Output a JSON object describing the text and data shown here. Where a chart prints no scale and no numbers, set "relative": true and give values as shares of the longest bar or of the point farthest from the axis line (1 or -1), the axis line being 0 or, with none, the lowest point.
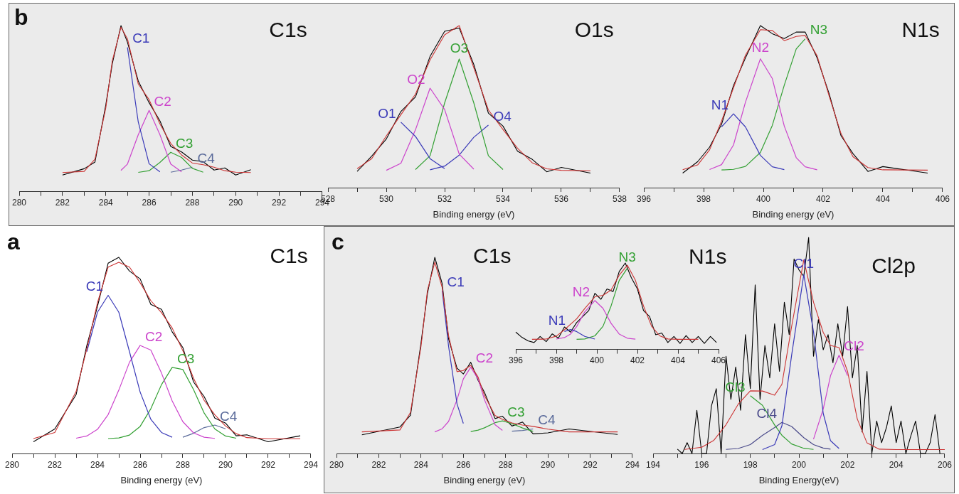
{
  "chart_data": [
    {
      "type": "line",
      "title": "C1s",
      "annotations": [
        "b"
      ],
      "relative": true,
      "marker": "none",
      "line_style": "solid",
      "grid": false,
      "legend": false,
      "x": [
        282,
        283,
        283.5,
        284,
        284.3,
        284.7,
        285,
        285.5,
        286,
        286.5,
        287,
        287.5,
        288,
        288.5,
        289,
        289.5,
        290,
        290.7
      ],
      "xlim": [
        280,
        294
      ],
      "xticks": [
        280,
        {
          "value": 281,
          "label": null
        },
        282,
        {
          "value": 283,
          "label": null
        },
        284,
        {
          "value": 285,
          "label": null
        },
        286,
        {
          "value": 287,
          "label": null
        },
        288,
        {
          "value": 289,
          "label": null
        },
        290,
        {
          "value": 291,
          "label": null
        },
        292,
        {
          "value": 293,
          "label": null
        },
        294
      ],
      "series": [
        {
          "color": "#cc3333",
          "values": [
            0.115,
            0.122,
            0.196,
            0.504,
            0.788,
            0.99,
            0.92,
            0.648,
            0.554,
            0.408,
            0.29,
            0.221,
            0.172,
            0.162,
            0.147,
            0.126,
            0.117,
            0.115
          ]
        },
        {
          "name": "C1",
          "color": "#3a3ab8",
          "values": [
            null,
            null,
            null,
            null,
            null,
            null,
            0.869,
            0.419,
            0.168,
            0.119,
            null,
            null,
            null,
            null,
            null,
            null,
            null,
            null
          ]
        },
        {
          "name": "C2",
          "color": "#cc44cc",
          "values": [
            null,
            null,
            null,
            null,
            null,
            0.128,
            0.166,
            0.343,
            0.49,
            0.343,
            0.166,
            0.119,
            null,
            null,
            null,
            null,
            null,
            null
          ]
        },
        {
          "name": "C3",
          "color": "#33a033",
          "values": [
            null,
            null,
            null,
            null,
            null,
            null,
            null,
            0.116,
            0.126,
            0.176,
            0.237,
            0.206,
            0.14,
            0.117,
            null,
            null,
            null,
            null
          ]
        },
        {
          "name": "C4",
          "color": "#5a6a9a",
          "values": [
            null,
            null,
            null,
            null,
            null,
            null,
            null,
            null,
            null,
            null,
            0.117,
            0.13,
            0.147,
            null,
            null,
            null,
            null,
            null
          ]
        },
        {
          "color": "#000000",
          "values": [
            0.1,
            0.138,
            0.178,
            0.522,
            0.77,
            1.0,
            0.9,
            0.666,
            0.536,
            0.426,
            0.272,
            0.239,
            0.19,
            0.18,
            0.13,
            0.143,
            0.1,
            0.132
          ]
        }
      ]
    },
    {
      "type": "line",
      "title": "O1s",
      "xlabel": "Binding energy (eV)",
      "relative": true,
      "marker": "none",
      "line_style": "solid",
      "grid": false,
      "legend": false,
      "x": [
        529,
        529.5,
        530,
        530.5,
        531,
        531.5,
        532,
        532.5,
        533,
        533.5,
        534,
        534.5,
        535,
        535.5,
        536,
        537
      ],
      "xlim": [
        528,
        538
      ],
      "xticks": [
        528,
        {
          "value": 529,
          "label": null
        },
        530,
        {
          "value": 531,
          "label": null
        },
        532,
        {
          "value": 533,
          "label": null
        },
        534,
        {
          "value": 535,
          "label": null
        },
        536,
        {
          "value": 537,
          "label": null
        },
        538
      ],
      "series": [
        {
          "color": "#cc3333",
          "values": [
            0.117,
            0.179,
            0.319,
            0.45,
            0.577,
            0.788,
            0.943,
            1.0,
            0.74,
            0.479,
            0.359,
            0.243,
            0.154,
            0.116,
            0.107,
            0.104
          ]
        },
        {
          "name": "O1",
          "color": "#3a3ab8",
          "values": [
            null,
            null,
            null,
            0.404,
            0.316,
            0.179,
            0.117,
            null,
            null,
            null,
            null,
            null,
            null,
            null,
            null,
            null
          ]
        },
        {
          "name": "O2",
          "color": "#cc44cc",
          "values": [
            null,
            null,
            0.107,
            0.15,
            0.357,
            0.614,
            0.482,
            0.207,
            0.114,
            null,
            null,
            null,
            null,
            null,
            null,
            null
          ]
        },
        {
          "name": "O3",
          "color": "#33a033",
          "values": [
            null,
            null,
            null,
            null,
            0.112,
            0.197,
            0.523,
            0.794,
            0.523,
            0.197,
            0.112,
            null,
            null,
            null,
            null,
            null
          ]
        },
        {
          "name": "O4",
          "color": "#3a3ab8",
          "values": [
            null,
            null,
            null,
            null,
            null,
            0.11,
            0.133,
            0.201,
            0.311,
            0.386,
            null,
            null,
            null,
            null,
            null,
            null
          ]
        },
        {
          "color": "#000000",
          "values": [
            0.1,
            0.195,
            0.3,
            0.47,
            0.56,
            0.81,
            0.965,
            0.985,
            0.76,
            0.46,
            0.38,
            0.225,
            0.175,
            0.098,
            0.125,
            0.09
          ]
        }
      ]
    },
    {
      "type": "line",
      "title": "N1s",
      "xlabel": "Binding energy (eV)",
      "relative": true,
      "marker": "none",
      "line_style": "solid",
      "grid": false,
      "legend": false,
      "x": [
        397.3,
        397.8,
        398.2,
        398.6,
        399,
        399.4,
        399.9,
        400.3,
        400.7,
        401.1,
        401.4,
        401.8,
        402.2,
        402.6,
        403,
        403.5,
        404,
        405.5
      ],
      "xlim": [
        396,
        406
      ],
      "xticks": [
        396,
        {
          "value": 397,
          "label": null
        },
        398,
        {
          "value": 399,
          "label": null
        },
        400,
        {
          "value": 401,
          "label": null
        },
        402,
        {
          "value": 403,
          "label": null
        },
        404,
        {
          "value": 405,
          "label": null
        },
        406
      ],
      "series": [
        {
          "color": "#cc3333",
          "values": [
            0.111,
            0.14,
            0.233,
            0.41,
            0.616,
            0.817,
            0.975,
            0.97,
            0.907,
            0.933,
            0.939,
            0.813,
            0.567,
            0.333,
            0.191,
            0.124,
            0.11,
            0.108
          ]
        },
        {
          "name": "N1",
          "color": "#3a3ab8",
          "values": [
            null,
            null,
            null,
            0.375,
            0.456,
            0.375,
            0.199,
            0.129,
            0.111,
            null,
            null,
            null,
            null,
            null,
            null,
            null,
            null,
            null
          ]
        },
        {
          "name": "N2",
          "color": "#cc44cc",
          "values": [
            null,
            null,
            0.112,
            0.142,
            0.263,
            0.527,
            0.795,
            0.673,
            0.38,
            0.185,
            0.129,
            0.11,
            null,
            null,
            null,
            null,
            null,
            null
          ]
        },
        {
          "name": "N3",
          "color": "#33a033",
          "values": [
            null,
            null,
            null,
            0.109,
            0.113,
            0.131,
            0.217,
            0.384,
            0.632,
            0.856,
            0.918,
            null,
            null,
            null,
            null,
            null,
            null,
            null
          ]
        },
        {
          "color": "#000000",
          "values": [
            0.09,
            0.16,
            0.25,
            0.39,
            0.63,
            0.8,
            1.0,
            0.95,
            0.92,
            0.96,
            0.96,
            0.8,
            0.58,
            0.32,
            0.21,
            0.1,
            0.13,
            0.09
          ]
        }
      ]
    },
    {
      "type": "line",
      "title": "C1s",
      "xlabel": "Binding energy (eV)",
      "annotations": [
        "a"
      ],
      "relative": true,
      "marker": "none",
      "line_style": "solid",
      "grid": false,
      "legend": false,
      "x": [
        281,
        282,
        283,
        283.5,
        284,
        284.5,
        285,
        285.5,
        286,
        286.5,
        287,
        287.5,
        288,
        288.5,
        289,
        289.5,
        290,
        290.5,
        291,
        292,
        293.5
      ],
      "xlim": [
        280,
        294
      ],
      "xticks": [
        280,
        {
          "value": 281,
          "label": null
        },
        282,
        {
          "value": 283,
          "label": null
        },
        284,
        {
          "value": 285,
          "label": null
        },
        286,
        {
          "value": 287,
          "label": null
        },
        288,
        {
          "value": 289,
          "label": null
        },
        290,
        {
          "value": 291,
          "label": null
        },
        292,
        {
          "value": 293,
          "label": null
        },
        294
      ],
      "series": [
        {
          "color": "#cc3333",
          "values": [
            0.076,
            0.107,
            0.316,
            0.533,
            0.768,
            0.95,
            0.975,
            0.95,
            0.87,
            0.779,
            0.718,
            0.64,
            0.524,
            0.384,
            0.271,
            0.197,
            0.14,
            0.101,
            0.081,
            0.075,
            0.075
          ]
        },
        {
          "name": "C1",
          "color": "#3a3ab8",
          "values": [
            null,
            null,
            null,
            0.519,
            0.72,
            0.806,
            0.72,
            0.519,
            0.313,
            0.174,
            0.107,
            0.083,
            null,
            null,
            null,
            null,
            null,
            null,
            null,
            null,
            null
          ]
        },
        {
          "name": "C2",
          "color": "#cc44cc",
          "values": [
            null,
            null,
            0.078,
            0.089,
            0.123,
            0.198,
            0.323,
            0.465,
            0.551,
            0.527,
            0.41,
            0.268,
            0.162,
            0.105,
            0.083,
            0.077,
            null,
            null,
            null,
            null,
            null
          ]
        },
        {
          "name": "C3",
          "color": "#33a033",
          "values": [
            null,
            null,
            null,
            null,
            null,
            0.076,
            0.079,
            0.094,
            0.138,
            0.228,
            0.351,
            0.439,
            0.428,
            0.326,
            0.206,
            0.125,
            0.089,
            0.078,
            null,
            null,
            null
          ]
        },
        {
          "name": "C4",
          "color": "#5a6a9a",
          "values": [
            null,
            null,
            null,
            null,
            null,
            null,
            null,
            null,
            null,
            null,
            null,
            null,
            0.083,
            0.103,
            0.132,
            0.145,
            0.126,
            null,
            null,
            null,
            null
          ]
        },
        {
          "color": "#000000",
          "values": [
            0.06,
            0.125,
            0.3,
            0.55,
            0.75,
            0.97,
            1.0,
            0.93,
            0.89,
            0.76,
            0.735,
            0.62,
            0.54,
            0.365,
            0.29,
            0.18,
            0.155,
            0.09,
            0.095,
            0.06,
            0.09
          ]
        }
      ]
    },
    {
      "type": "line",
      "title": "C1s",
      "xlabel": "Binding energy (eV)",
      "annotations": [
        "c"
      ],
      "relative": true,
      "marker": "none",
      "line_style": "solid",
      "grid": false,
      "legend": false,
      "x": [
        281.2,
        283,
        283.5,
        284,
        284.3,
        284.65,
        285,
        285.3,
        285.7,
        286,
        286.35,
        286.7,
        287,
        287.5,
        287.85,
        288.3,
        288.8,
        289.3,
        290,
        291,
        293.3
      ],
      "xlim": [
        280,
        294
      ],
      "xticks": [
        280,
        {
          "value": 281,
          "label": null
        },
        282,
        {
          "value": 283,
          "label": null
        },
        284,
        {
          "value": 285,
          "label": null
        },
        286,
        {
          "value": 287,
          "label": null
        },
        288,
        {
          "value": 289,
          "label": null
        },
        290,
        {
          "value": 291,
          "label": null
        },
        292,
        {
          "value": 293,
          "label": null
        },
        294
      ],
      "series": [
        {
          "color": "#cc3333",
          "values": [
            0.11,
            0.12,
            0.209,
            0.548,
            0.83,
            0.975,
            0.846,
            0.601,
            0.417,
            0.423,
            0.449,
            0.389,
            0.295,
            0.194,
            0.174,
            0.156,
            0.145,
            0.138,
            0.124,
            0.11,
            0.11
          ]
        },
        {
          "name": "C1",
          "color": "#3a3ab8",
          "values": [
            null,
            null,
            null,
            null,
            null,
            null,
            0.83,
            0.548,
            0.253,
            0.153,
            null,
            null,
            null,
            null,
            null,
            null,
            null,
            null,
            null,
            null,
            null
          ]
        },
        {
          "name": "C2",
          "color": "#cc44cc",
          "values": [
            null,
            null,
            null,
            null,
            null,
            0.11,
            0.126,
            0.163,
            0.274,
            0.38,
            0.44,
            0.38,
            0.274,
            0.147,
            0.118,
            null,
            null,
            null,
            null,
            null,
            null
          ]
        },
        {
          "name": "C3",
          "color": "#33a033",
          "values": [
            null,
            null,
            null,
            null,
            null,
            null,
            null,
            null,
            null,
            null,
            0.112,
            0.119,
            0.131,
            0.157,
            0.166,
            0.152,
            0.13,
            0.113,
            null,
            null,
            null
          ]
        },
        {
          "name": "C4",
          "color": "#5a6a9a",
          "values": [
            null,
            null,
            null,
            null,
            null,
            null,
            null,
            null,
            null,
            null,
            null,
            null,
            null,
            null,
            null,
            0.114,
            0.117,
            0.125,
            null,
            null,
            null
          ]
        },
        {
          "color": "#000000",
          "values": [
            0.095,
            0.135,
            0.195,
            0.565,
            0.815,
            1.0,
            0.865,
            0.585,
            0.435,
            0.405,
            0.465,
            0.372,
            0.312,
            0.178,
            0.19,
            0.14,
            0.16,
            0.1,
            0.105,
            0.125,
            0.097
          ]
        }
      ]
    },
    {
      "type": "line",
      "title": "N1s",
      "relative": true,
      "marker": "none",
      "line_style": "solid",
      "grid": false,
      "legend": false,
      "x": [
        396.8,
        397.5,
        398,
        398.4,
        398.7,
        399,
        399.4,
        399.9,
        400.3,
        400.7,
        401.1,
        401.5,
        401.9,
        402.3,
        402.7,
        403.1,
        403.5,
        404,
        405
      ],
      "xlim": [
        396,
        406
      ],
      "xticks": [
        396,
        {
          "value": 397,
          "label": null
        },
        398,
        {
          "value": 399,
          "label": null
        },
        400,
        {
          "value": 401,
          "label": null
        },
        402,
        {
          "value": 403,
          "label": null
        },
        404,
        {
          "value": 405,
          "label": null
        },
        406
      ],
      "series": [
        {
          "color": "#cc3333",
          "values": [
            0.117,
            0.12,
            0.154,
            0.227,
            0.291,
            0.353,
            0.472,
            0.609,
            0.626,
            0.688,
            0.859,
            0.975,
            0.8,
            0.503,
            0.267,
            0.157,
            0.121,
            0.117,
            0.117
          ]
        },
        {
          "name": "N1",
          "color": "#3a3ab8",
          "values": [
            null,
            null,
            null,
            0.207,
            0.23,
            0.207,
            0.151,
            0.12,
            null,
            null,
            null,
            null,
            null,
            null,
            null,
            null,
            null,
            null,
            null
          ]
        },
        {
          "name": "N2",
          "color": "#cc44cc",
          "values": [
            null,
            null,
            0.12,
            0.137,
            0.178,
            0.263,
            0.434,
            0.566,
            0.476,
            0.302,
            0.178,
            0.13,
            0.119,
            null,
            null,
            null,
            null,
            null,
            null
          ]
        },
        {
          "name": "N3",
          "color": "#33a033",
          "values": [
            null,
            null,
            null,
            null,
            null,
            0.117,
            0.121,
            0.157,
            0.267,
            0.503,
            0.798,
            0.94,
            null,
            null,
            null,
            null,
            null,
            null,
            null
          ]
        },
        {
          "color": "#000000",
          "x": [
            396,
            396.3,
            396.6,
            396.9,
            397.2,
            397.5,
            397.8,
            398.1,
            398.4,
            398.7,
            399,
            399.3,
            399.6,
            399.9,
            400.2,
            400.5,
            400.8,
            401.1,
            401.4,
            401.7,
            402,
            402.3,
            402.6,
            402.9,
            403.2,
            403.5,
            403.8,
            404.1,
            404.4,
            404.7,
            405,
            405.3,
            405.6,
            405.9
          ],
          "values": [
            0.2,
            0.14,
            0.1,
            0.08,
            0.15,
            0.09,
            0.18,
            0.13,
            0.26,
            0.2,
            0.31,
            0.38,
            0.45,
            0.65,
            0.58,
            0.7,
            0.67,
            0.9,
            1.0,
            0.83,
            0.7,
            0.45,
            0.38,
            0.17,
            0.19,
            0.08,
            0.15,
            0.07,
            0.16,
            0.08,
            0.15,
            0.07,
            0.15,
            0.08
          ]
        }
      ]
    },
    {
      "type": "line",
      "title": "Cl2p",
      "xlabel": "Binding Energy(eV)",
      "relative": true,
      "marker": "none",
      "line_style": "solid",
      "grid": false,
      "legend": false,
      "x": [
        195.3,
        196,
        196.5,
        197,
        197.5,
        198,
        198.5,
        199,
        199.3,
        199.7,
        200.2,
        200.6,
        201,
        201.3,
        201.65,
        202,
        202.4,
        202.8,
        203.3,
        204,
        206
      ],
      "xlim": [
        194,
        206
      ],
      "xticks": [
        194,
        {
          "value": 195,
          "label": null
        },
        196,
        {
          "value": 197,
          "label": null
        },
        198,
        {
          "value": 199,
          "label": null
        },
        200,
        {
          "value": 201,
          "label": null
        },
        202,
        {
          "value": 203,
          "label": null
        },
        204,
        {
          "value": 205,
          "label": null
        },
        206
      ],
      "series": [
        {
          "color": "#cc3333",
          "values": [
            0.019,
            0.029,
            0.061,
            0.133,
            0.228,
            0.29,
            0.289,
            0.27,
            0.32,
            0.588,
            0.896,
            0.7,
            0.56,
            0.5,
            0.49,
            0.38,
            0.16,
            0.049,
            0.02,
            0.018,
            0.018
          ]
        },
        {
          "name": "Cl1",
          "color": "#3a3ab8",
          "values": [
            null,
            null,
            null,
            null,
            null,
            null,
            0.018,
            0.041,
            0.128,
            0.455,
            0.828,
            0.564,
            0.185,
            0.059,
            0.023,
            null,
            null,
            null,
            null,
            null,
            null
          ]
        },
        {
          "name": "Cl2",
          "color": "#cc44cc",
          "values": [
            null,
            null,
            null,
            null,
            null,
            null,
            null,
            null,
            null,
            null,
            null,
            0.066,
            0.206,
            0.36,
            0.455,
            0.36,
            null,
            null,
            null,
            null,
            null
          ]
        },
        {
          "name": "Cl3",
          "color": "#33a033",
          "values": [
            null,
            null,
            null,
            null,
            null,
            0.267,
            0.223,
            0.132,
            0.084,
            0.044,
            0.024,
            0.019,
            null,
            null,
            null,
            null,
            null,
            null,
            null,
            null,
            null
          ]
        },
        {
          "name": "Cl4",
          "color": "#4a4a8a",
          "values": [
            null,
            null,
            null,
            0.019,
            0.023,
            0.041,
            0.084,
            0.12,
            0.144,
            0.125,
            0.073,
            0.041,
            0.025,
            0.02,
            null,
            null,
            null,
            null,
            null,
            null,
            null
          ]
        },
        {
          "color": "#000000",
          "x": [
            195,
            195.2,
            195.4,
            195.6,
            195.8,
            196,
            196.2,
            196.4,
            196.6,
            196.8,
            197,
            197.2,
            197.4,
            197.6,
            197.8,
            198,
            198.2,
            198.4,
            198.6,
            198.8,
            199,
            199.2,
            199.4,
            199.6,
            199.8,
            200,
            200.2,
            200.4,
            200.6,
            200.8,
            201,
            201.2,
            201.4,
            201.6,
            201.8,
            202,
            202.2,
            202.4,
            202.6,
            202.8,
            203,
            203.2,
            203.4,
            203.6,
            203.8,
            204,
            204.2,
            204.4,
            204.6,
            204.8,
            205,
            205.2,
            205.4,
            205.6,
            205.8
          ],
          "values": [
            0.02,
            0.0,
            0.05,
            0.0,
            0.2,
            0.0,
            0.0,
            0.22,
            0.3,
            0.0,
            0.45,
            0.25,
            0.4,
            0.2,
            0.55,
            0.3,
            0.78,
            0.25,
            0.5,
            0.35,
            0.6,
            0.38,
            0.7,
            0.55,
            0.9,
            0.85,
            0.82,
            1.0,
            0.45,
            0.62,
            0.48,
            0.55,
            0.42,
            0.6,
            0.45,
            0.68,
            0.35,
            0.5,
            0.1,
            0.38,
            0.0,
            0.15,
            0.05,
            0.12,
            0.22,
            0.05,
            0.15,
            0.0,
            0.08,
            0.15,
            0.0,
            0.0,
            0.05,
            0.18,
            0.0
          ]
        }
      ]
    }
  ]
}
